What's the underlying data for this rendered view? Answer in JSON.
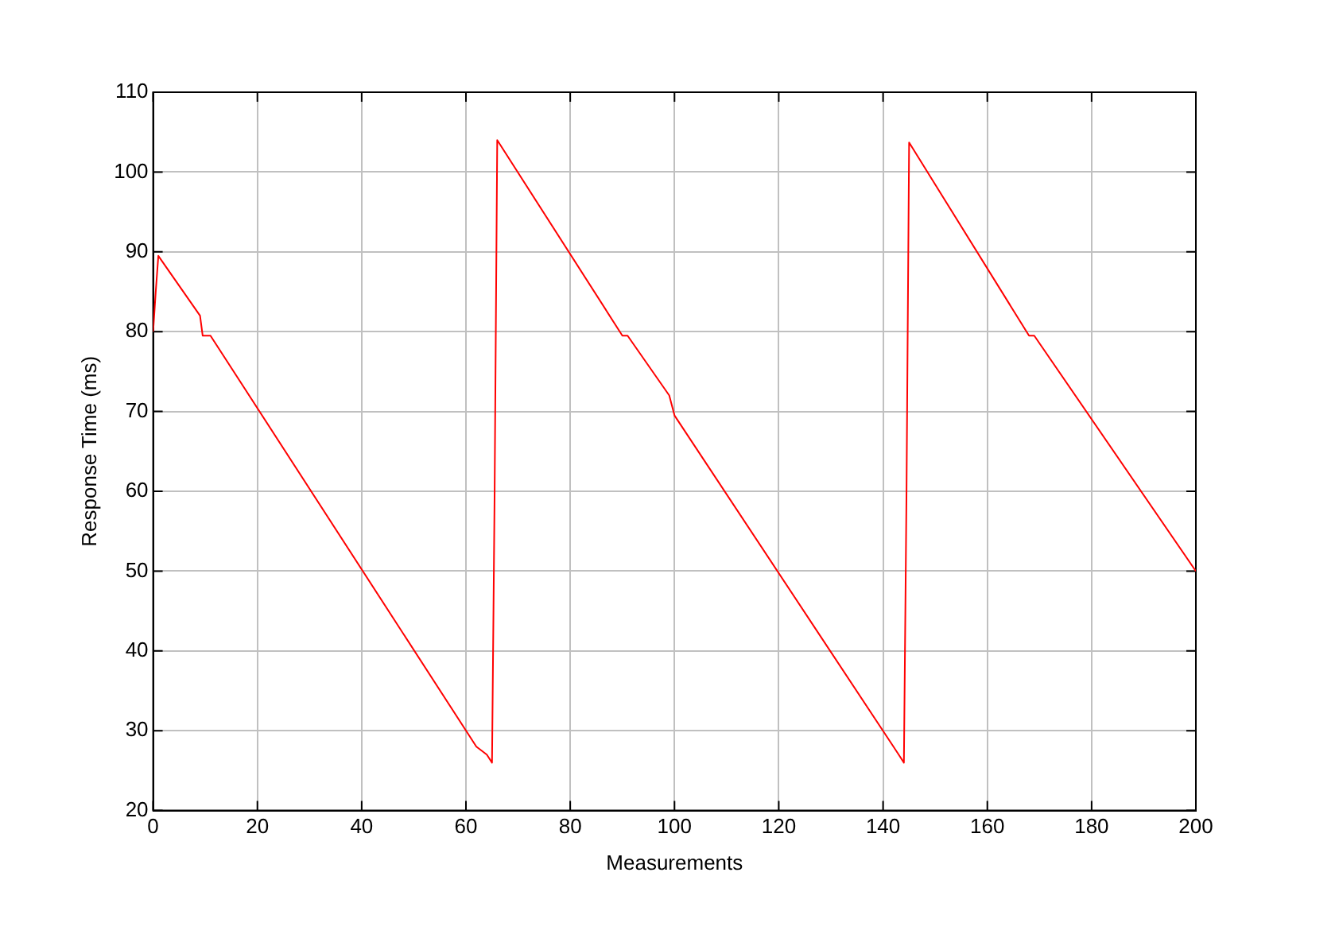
{
  "chart_data": {
    "type": "line",
    "xlabel": "Measurements",
    "ylabel": "Response Time (ms)",
    "series": [
      {
        "color": "#ff0000",
        "x": [
          0,
          0.5,
          1,
          9,
          9.5,
          11,
          62,
          63,
          64,
          65,
          65.5,
          66,
          90,
          91,
          99,
          100,
          142,
          143,
          144,
          144.5,
          145,
          168,
          169,
          200
        ],
        "values": [
          80,
          85,
          89.5,
          82,
          79.5,
          79.5,
          28,
          27.5,
          27,
          26,
          60,
          104,
          79.5,
          79.5,
          72,
          69.5,
          28,
          27,
          26,
          60,
          103.7,
          79.5,
          79.5,
          50
        ]
      }
    ],
    "xlim": [
      0,
      200
    ],
    "xticks": [
      0,
      20,
      40,
      60,
      80,
      100,
      120,
      140,
      160,
      180,
      200
    ],
    "ylim": [
      20,
      110
    ],
    "yticks": [
      20,
      30,
      40,
      50,
      60,
      70,
      80,
      90,
      100,
      110
    ],
    "grid": true,
    "marker": "none",
    "line_style": "solid"
  }
}
